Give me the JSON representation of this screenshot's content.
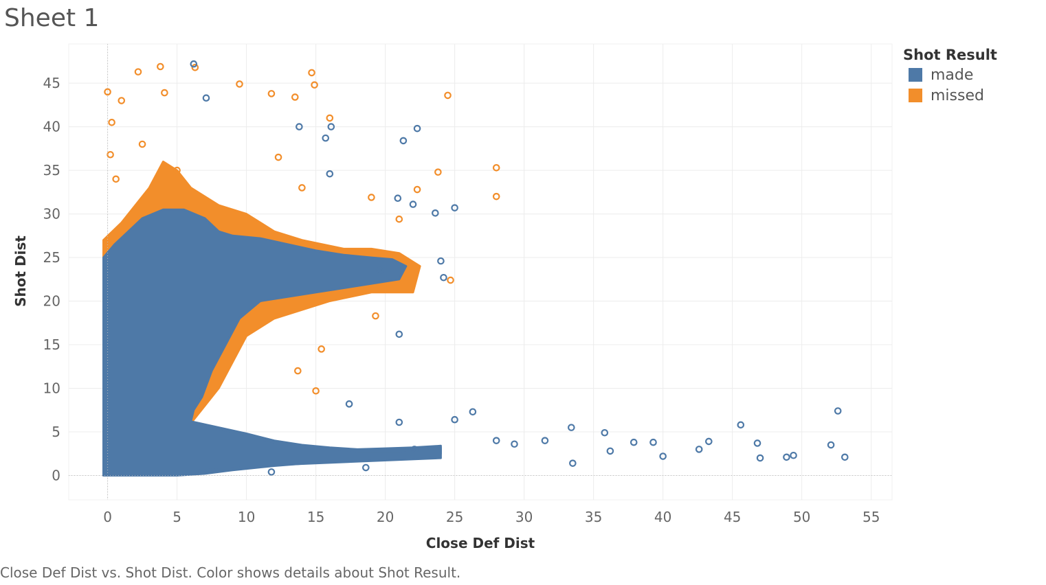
{
  "sheet": {
    "title": "Sheet 1"
  },
  "caption": "Close Def Dist vs. Shot Dist.  Color shows details about Shot Result.",
  "legend": {
    "title": "Shot Result",
    "items": [
      {
        "label": "made",
        "color": "#4e79a7"
      },
      {
        "label": "missed",
        "color": "#f28e2b"
      }
    ]
  },
  "chart_data": {
    "type": "scatter",
    "xlabel": "Close Def Dist",
    "ylabel": "Shot Dist",
    "xlim": [
      -2.8,
      56.5
    ],
    "ylim": [
      -2.8,
      49.5
    ],
    "xticks": [
      0,
      5,
      10,
      15,
      20,
      25,
      30,
      35,
      40,
      45,
      50,
      55
    ],
    "yticks": [
      0,
      5,
      10,
      15,
      20,
      25,
      30,
      35,
      40,
      45
    ],
    "grid": true,
    "legend_position": "top-right",
    "series": [
      {
        "name": "missed",
        "color": "#f28e2b",
        "x": [
          0,
          0.3,
          1.0,
          2.2,
          3.8,
          4.1,
          6.3,
          14.7,
          14.9,
          24.5,
          16.0,
          13.5,
          9.5,
          11.8,
          0.2,
          0.6,
          2.5,
          5.0,
          23.8,
          28.0,
          28.0,
          22.3,
          19.0,
          21.0,
          24.7,
          19.3,
          15.4,
          15.0,
          13.7,
          14.0,
          12.3
        ],
        "y": [
          44.0,
          40.5,
          43.0,
          46.3,
          46.9,
          43.9,
          46.8,
          46.2,
          44.8,
          43.6,
          41.0,
          43.4,
          44.9,
          43.8,
          36.8,
          34.0,
          38.0,
          35.0,
          34.8,
          35.3,
          32.0,
          32.8,
          31.9,
          29.4,
          22.4,
          18.3,
          14.5,
          9.7,
          12.0,
          33.0,
          36.5
        ]
      },
      {
        "name": "made",
        "color": "#4e79a7",
        "x": [
          6.2,
          7.1,
          13.8,
          16.1,
          15.7,
          21.3,
          22.3,
          20.9,
          22.0,
          25.0,
          23.6,
          16.0,
          19.6,
          24.0,
          24.2,
          21.0,
          28.0,
          22.1,
          26.3,
          29.3,
          31.5,
          33.4,
          35.8,
          37.9,
          39.3,
          42.6,
          43.3,
          45.6,
          46.8,
          49.4,
          52.6,
          53.1,
          47.0,
          48.9,
          40.0,
          36.2,
          33.5,
          52.1,
          25.0,
          17.4,
          18.6,
          21.0,
          11.8
        ],
        "y": [
          47.2,
          43.3,
          40.0,
          40.0,
          38.7,
          38.4,
          39.8,
          31.8,
          31.1,
          30.7,
          30.1,
          34.6,
          23.5,
          24.6,
          22.7,
          16.2,
          4.0,
          3.0,
          7.3,
          3.6,
          4.0,
          5.5,
          4.9,
          3.8,
          3.8,
          3.0,
          3.9,
          5.8,
          3.7,
          2.3,
          7.4,
          2.1,
          2.0,
          2.1,
          2.2,
          2.8,
          1.4,
          3.5,
          6.4,
          8.2,
          0.9,
          6.1,
          0.4
        ]
      }
    ]
  }
}
